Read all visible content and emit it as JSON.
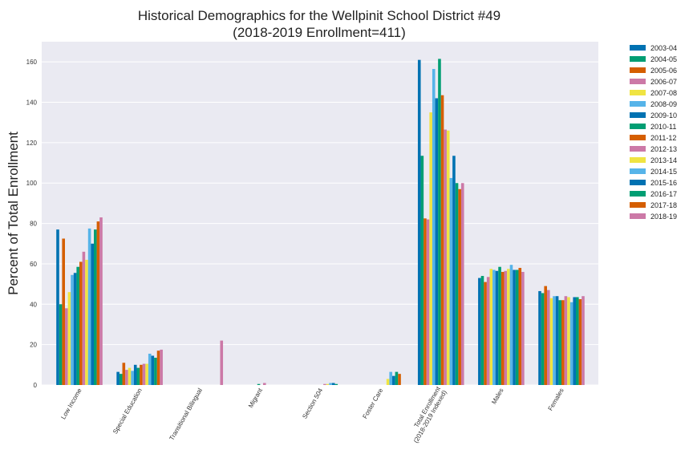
{
  "chart_data": {
    "type": "bar",
    "title": "Historical Demographics for the Wellpinit School District #49",
    "subtitle": "(2018-2019 Enrollment=411)",
    "xlabel": "",
    "ylabel": "Percent of Total Enrollment",
    "ylim": [
      0,
      170
    ],
    "yticks": [
      "0",
      "20",
      "40",
      "60",
      "80",
      "100",
      "120",
      "140",
      "160"
    ],
    "grid": true,
    "legend_position": "outside right",
    "categories": [
      [
        "Low Income"
      ],
      [
        "Special Education"
      ],
      [
        "Transitional Bilingual"
      ],
      [
        "Migrant"
      ],
      [
        "Section 504"
      ],
      [
        "Foster Care"
      ],
      [
        "Total Enrollment",
        "(2018-2019 Indexed)"
      ],
      [
        "Males"
      ],
      [
        "Females"
      ]
    ],
    "series": [
      {
        "name": "2003-04",
        "color": "#0072b2",
        "values": [
          77,
          6.5,
          0,
          0,
          0,
          0,
          161,
          53,
          46.5
        ]
      },
      {
        "name": "2004-05",
        "color": "#009e73",
        "values": [
          40,
          5.5,
          0,
          0,
          0,
          0,
          113.5,
          54,
          45.5
        ]
      },
      {
        "name": "2005-06",
        "color": "#d55e00",
        "values": [
          72.5,
          11,
          0,
          0,
          0,
          0,
          82.5,
          51,
          49
        ]
      },
      {
        "name": "2006-07",
        "color": "#cc79a7",
        "values": [
          38,
          7.5,
          0,
          0,
          0,
          0,
          82,
          53.5,
          47
        ]
      },
      {
        "name": "2007-08",
        "color": "#f0e442",
        "values": [
          46,
          8.5,
          0,
          0,
          0,
          0,
          135,
          57.5,
          43
        ]
      },
      {
        "name": "2008-09",
        "color": "#56b4e9",
        "values": [
          54.5,
          7,
          0,
          0,
          0,
          0,
          156.5,
          57,
          44
        ]
      },
      {
        "name": "2009-10",
        "color": "#0072b2",
        "values": [
          55.5,
          10,
          0,
          0,
          0,
          0,
          142,
          56.5,
          44
        ]
      },
      {
        "name": "2010-11",
        "color": "#009e73",
        "values": [
          58.5,
          8.5,
          0,
          0.5,
          0,
          0,
          161.5,
          58.5,
          42
        ]
      },
      {
        "name": "2011-12",
        "color": "#d55e00",
        "values": [
          61,
          10,
          0,
          0,
          0,
          0,
          143.5,
          56,
          42
        ]
      },
      {
        "name": "2012-13",
        "color": "#cc79a7",
        "values": [
          66,
          10.5,
          0,
          1,
          0.5,
          0,
          126.5,
          56.5,
          44
        ]
      },
      {
        "name": "2013-14",
        "color": "#f0e442",
        "values": [
          62,
          10.5,
          0,
          0,
          0.5,
          3,
          126,
          57.5,
          43.5
        ]
      },
      {
        "name": "2014-15",
        "color": "#56b4e9",
        "values": [
          77.5,
          15.5,
          0,
          0,
          1,
          6.5,
          102.5,
          59.5,
          41
        ]
      },
      {
        "name": "2015-16",
        "color": "#0072b2",
        "values": [
          70,
          14.5,
          0,
          0,
          1,
          4.5,
          113.5,
          57,
          43.5
        ]
      },
      {
        "name": "2016-17",
        "color": "#009e73",
        "values": [
          77,
          13.5,
          0,
          0,
          0.5,
          6.5,
          100,
          57,
          43.5
        ]
      },
      {
        "name": "2017-18",
        "color": "#d55e00",
        "values": [
          81,
          17,
          0,
          0,
          0,
          5.5,
          97,
          58,
          42.5
        ]
      },
      {
        "name": "2018-19",
        "color": "#cc79a7",
        "values": [
          83,
          17.5,
          22,
          0,
          0,
          0,
          100,
          56,
          44
        ]
      }
    ]
  },
  "colors": {
    "plot_background": "#eaeaf2",
    "grid": "#ffffff"
  }
}
